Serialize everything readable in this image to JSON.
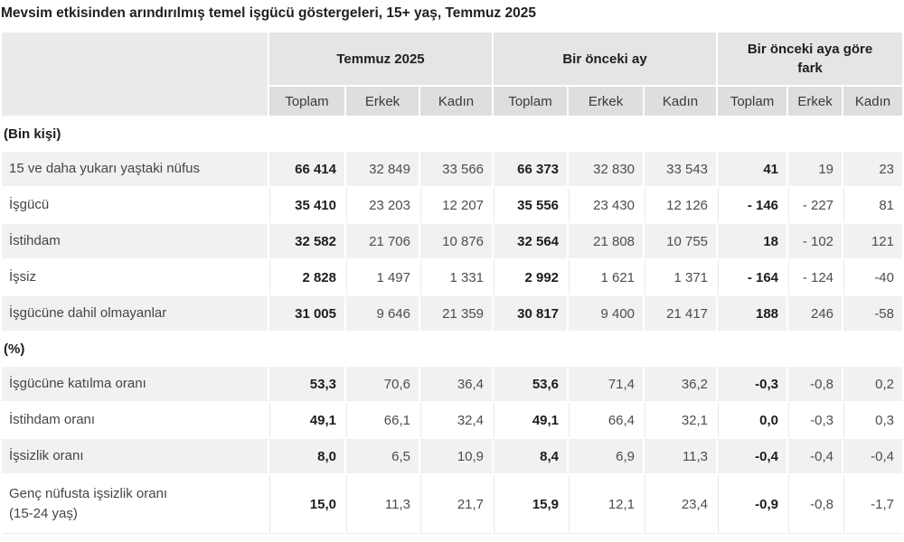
{
  "title": "Mevsim etkisinden arındırılmış temel işgücü göstergeleri, 15+ yaş, Temmuz 2025",
  "table": {
    "col_groups": [
      "Temmuz 2025",
      "Bir önceki ay",
      "Bir önceki aya göre fark"
    ],
    "subcolumns": [
      "Toplam",
      "Erkek",
      "Kadın"
    ],
    "sections": [
      {
        "header": "(Bin kişi)",
        "rows": [
          {
            "label": "15 ve daha yukarı yaştaki nüfus",
            "values": [
              "66 414",
              "32 849",
              "33 566",
              "66 373",
              "32 830",
              "33 543",
              "41",
              "19",
              "23"
            ]
          },
          {
            "label": "İşgücü",
            "values": [
              "35 410",
              "23 203",
              "12 207",
              "35 556",
              "23 430",
              "12 126",
              "- 146",
              "- 227",
              "81"
            ]
          },
          {
            "label": "İstihdam",
            "values": [
              "32 582",
              "21 706",
              "10 876",
              "32 564",
              "21 808",
              "10 755",
              "18",
              "- 102",
              "121"
            ]
          },
          {
            "label": "İşsiz",
            "values": [
              "2 828",
              "1 497",
              "1 331",
              "2 992",
              "1 621",
              "1 371",
              "- 164",
              "- 124",
              "-40"
            ]
          },
          {
            "label": "İşgücüne dahil olmayanlar",
            "values": [
              "31 005",
              "9 646",
              "21 359",
              "30 817",
              "9 400",
              "21 417",
              "188",
              "246",
              "-58"
            ]
          }
        ]
      },
      {
        "header": "(%)",
        "rows": [
          {
            "label": "İşgücüne katılma oranı",
            "values": [
              "53,3",
              "70,6",
              "36,4",
              "53,6",
              "71,4",
              "36,2",
              "-0,3",
              "-0,8",
              "0,2"
            ]
          },
          {
            "label": "İstihdam oranı",
            "values": [
              "49,1",
              "66,1",
              "32,4",
              "49,1",
              "66,4",
              "32,1",
              "0,0",
              "-0,3",
              "0,3"
            ]
          },
          {
            "label": "İşsizlik oranı",
            "values": [
              "8,0",
              "6,5",
              "10,9",
              "8,4",
              "6,9",
              "11,3",
              "-0,4",
              "-0,4",
              "-0,4"
            ]
          },
          {
            "label": "Genç nüfusta işsizlik oranı",
            "label2": "(15-24 yaş)",
            "values": [
              "15,0",
              "11,3",
              "21,7",
              "15,9",
              "12,1",
              "23,4",
              "-0,9",
              "-0,8",
              "-1,7"
            ]
          }
        ]
      }
    ]
  },
  "colors": {
    "title_text": "#1f1f1f",
    "corner_bg": "#ebebeb",
    "group_bg": "#e5e5e5",
    "sub_bg": "#dedede",
    "zebra_bg": "#f1f1f1",
    "faint_line": "#e9e9e9"
  }
}
